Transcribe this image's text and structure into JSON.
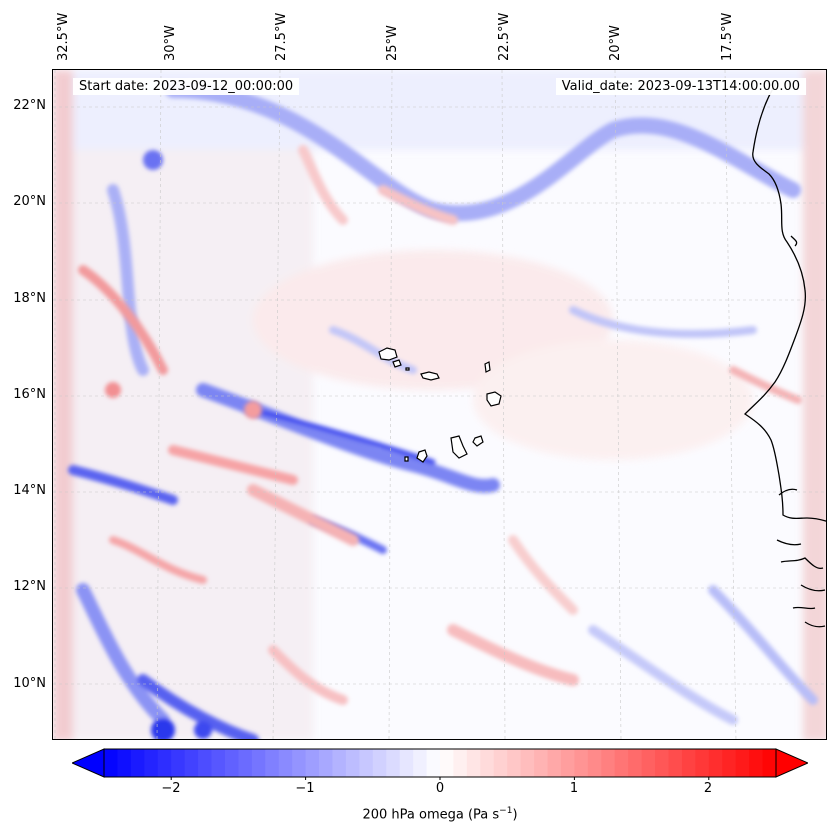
{
  "map": {
    "start_date": "Start date: 2023-09-12_00:00:00",
    "valid_date": "Valid_date: 2023-09-13T14:00:00.00",
    "lon_labels": [
      "32.5°W",
      "30°W",
      "27.5°W",
      "25°W",
      "22.5°W",
      "20°W",
      "17.5°W"
    ],
    "lat_labels": [
      "22°N",
      "20°N",
      "18°N",
      "16°N",
      "14°N",
      "12°N",
      "10°N"
    ],
    "extent": {
      "lon_min": -32.9,
      "lon_max": -15.9,
      "lat_min": 8.9,
      "lat_max": 22.8
    },
    "field": "200 hPa omega",
    "land_region": "West African coast (Mauritania, Senegal, Gambia, Guinea-Bissau)",
    "islands": "Cape Verde"
  },
  "colorbar": {
    "label_text": "200 hPa omega (Pa s",
    "label_exp": "−1",
    "label_close": ")",
    "ticks": [
      "−2",
      "−1",
      "0",
      "1",
      "2"
    ],
    "tick_values": [
      -2,
      -1,
      0,
      1,
      2
    ],
    "vmin": -2.5,
    "vmax": 2.5,
    "extend": "both",
    "colormap": "bwr",
    "min_color": "#0000ff",
    "mid_color": "#ffffff",
    "max_color": "#ff0000"
  }
}
